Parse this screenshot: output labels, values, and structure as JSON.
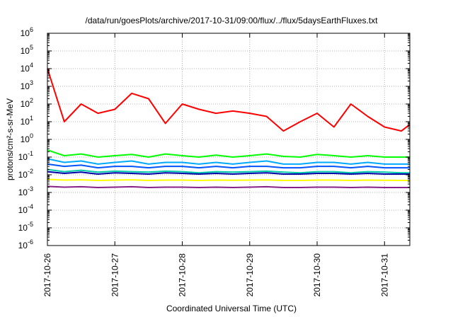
{
  "chart_data": {
    "type": "line",
    "title": "/data/run/goesPlots/archive/2017-10-31/09:00/flux/../flux/5daysEarthFluxes.txt",
    "xlabel": "Coordinated Universal Time (UTC)",
    "ylabel": "protons/cm²-s-sr-MeV",
    "y_scale": "log",
    "ylim": [
      1e-06,
      1000000.0
    ],
    "y_ticks": [
      {
        "value": 1e-06,
        "label": "10-6",
        "base": "10",
        "exp": "-6"
      },
      {
        "value": 1e-05,
        "label": "10-5",
        "base": "10",
        "exp": "-5"
      },
      {
        "value": 0.0001,
        "label": "10-4",
        "base": "10",
        "exp": "-4"
      },
      {
        "value": 0.001,
        "label": "10-3",
        "base": "10",
        "exp": "-3"
      },
      {
        "value": 0.01,
        "label": "10-2",
        "base": "10",
        "exp": "-2"
      },
      {
        "value": 0.1,
        "label": "10-1",
        "base": "10",
        "exp": "-1"
      },
      {
        "value": 1,
        "label": "100",
        "base": "10",
        "exp": "0"
      },
      {
        "value": 10,
        "label": "101",
        "base": "10",
        "exp": "1"
      },
      {
        "value": 100,
        "label": "102",
        "base": "10",
        "exp": "2"
      },
      {
        "value": 1000,
        "label": "103",
        "base": "10",
        "exp": "3"
      },
      {
        "value": 10000,
        "label": "104",
        "base": "10",
        "exp": "4"
      },
      {
        "value": 100000,
        "label": "105",
        "base": "10",
        "exp": "5"
      },
      {
        "value": 1000000,
        "label": "106",
        "base": "10",
        "exp": "6"
      }
    ],
    "xlim": [
      "2017-10-26T00:00",
      "2017-10-31T09:00"
    ],
    "x_ticks": [
      "2017-10-26",
      "2017-10-27",
      "2017-10-28",
      "2017-10-29",
      "2017-10-30",
      "2017-10-31"
    ],
    "grid": true,
    "legend": "none",
    "x": [
      "2017-10-26T00:00",
      "2017-10-26T06:00",
      "2017-10-26T12:00",
      "2017-10-26T18:00",
      "2017-10-27T00:00",
      "2017-10-27T06:00",
      "2017-10-27T12:00",
      "2017-10-27T18:00",
      "2017-10-28T00:00",
      "2017-10-28T06:00",
      "2017-10-28T12:00",
      "2017-10-28T18:00",
      "2017-10-29T00:00",
      "2017-10-29T06:00",
      "2017-10-29T12:00",
      "2017-10-29T18:00",
      "2017-10-30T00:00",
      "2017-10-30T06:00",
      "2017-10-30T12:00",
      "2017-10-30T18:00",
      "2017-10-31T00:00",
      "2017-10-31T06:00",
      "2017-10-31T09:00"
    ],
    "series": [
      {
        "color": "#ff0000",
        "values": [
          10000,
          10,
          100,
          30,
          50,
          400,
          200,
          8,
          100,
          50,
          30,
          40,
          30,
          20,
          3,
          10,
          30,
          5,
          100,
          20,
          5,
          3,
          7
        ]
      },
      {
        "color": "#00ff00",
        "values": [
          0.25,
          0.12,
          0.15,
          0.1,
          0.12,
          0.14,
          0.1,
          0.15,
          0.12,
          0.1,
          0.13,
          0.1,
          0.12,
          0.15,
          0.11,
          0.1,
          0.14,
          0.12,
          0.1,
          0.12,
          0.1,
          0.1,
          0.1
        ]
      },
      {
        "color": "#00aaff",
        "values": [
          0.08,
          0.05,
          0.06,
          0.04,
          0.05,
          0.06,
          0.04,
          0.05,
          0.05,
          0.04,
          0.05,
          0.04,
          0.05,
          0.06,
          0.04,
          0.04,
          0.05,
          0.05,
          0.04,
          0.05,
          0.04,
          0.04,
          0.04
        ]
      },
      {
        "color": "#0055ff",
        "values": [
          0.04,
          0.03,
          0.035,
          0.025,
          0.03,
          0.03,
          0.025,
          0.03,
          0.03,
          0.025,
          0.03,
          0.025,
          0.03,
          0.03,
          0.025,
          0.025,
          0.03,
          0.03,
          0.025,
          0.03,
          0.025,
          0.025,
          0.025
        ]
      },
      {
        "color": "#00ccaa",
        "values": [
          0.02,
          0.015,
          0.018,
          0.014,
          0.016,
          0.015,
          0.014,
          0.016,
          0.015,
          0.013,
          0.015,
          0.014,
          0.015,
          0.016,
          0.014,
          0.013,
          0.015,
          0.015,
          0.013,
          0.015,
          0.014,
          0.013,
          0.013
        ]
      },
      {
        "color": "#0000aa",
        "values": [
          0.015,
          0.012,
          0.014,
          0.011,
          0.013,
          0.012,
          0.011,
          0.013,
          0.012,
          0.011,
          0.012,
          0.011,
          0.012,
          0.013,
          0.011,
          0.011,
          0.012,
          0.012,
          0.011,
          0.012,
          0.011,
          0.011,
          0.011
        ]
      },
      {
        "color": "#ffff00",
        "values": [
          0.0055,
          0.005,
          0.0052,
          0.0048,
          0.005,
          0.0052,
          0.0048,
          0.005,
          0.005,
          0.0048,
          0.005,
          0.0049,
          0.005,
          0.0051,
          0.0048,
          0.0048,
          0.005,
          0.005,
          0.0048,
          0.005,
          0.0049,
          0.0048,
          0.0048
        ]
      },
      {
        "color": "#882288",
        "values": [
          0.0022,
          0.002,
          0.0021,
          0.0019,
          0.002,
          0.0021,
          0.0019,
          0.002,
          0.002,
          0.0019,
          0.002,
          0.0019,
          0.002,
          0.0021,
          0.0019,
          0.0019,
          0.002,
          0.002,
          0.0019,
          0.002,
          0.0019,
          0.0019,
          0.0019
        ]
      }
    ]
  }
}
